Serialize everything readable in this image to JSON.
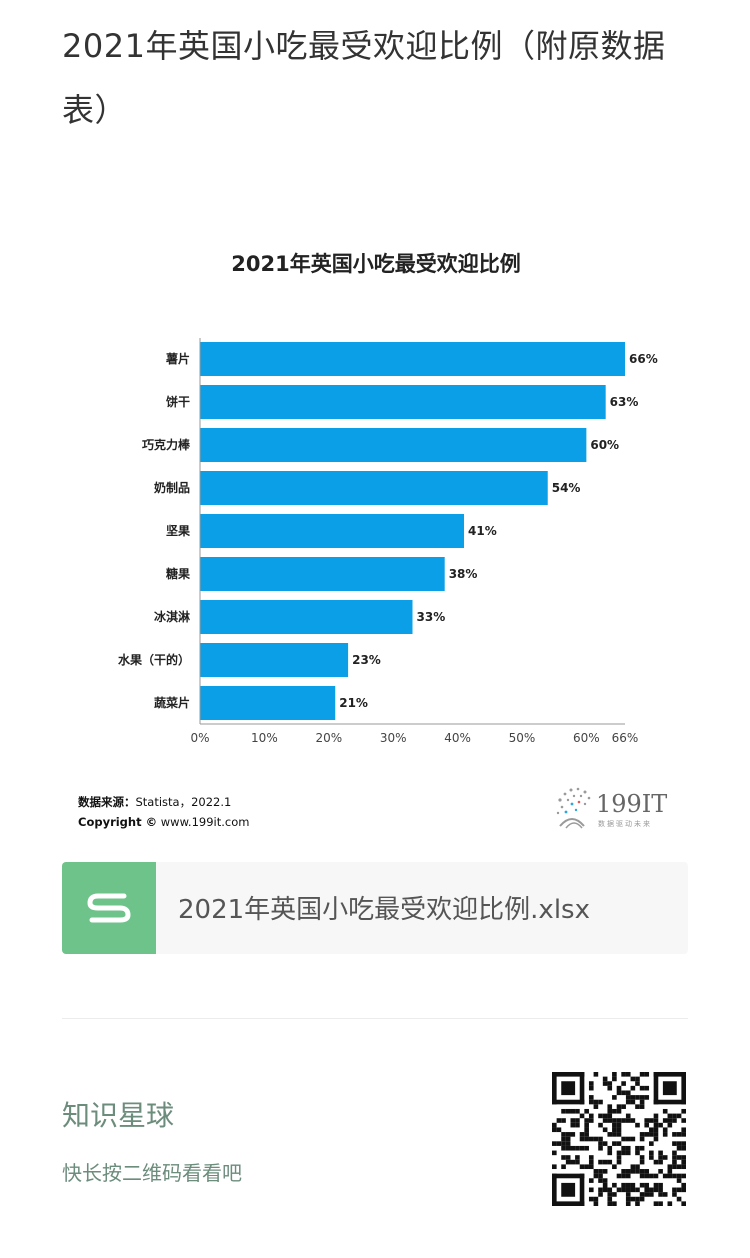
{
  "article": {
    "title": "2021年英国小吃最受欢迎比例（附原数据表）"
  },
  "chart_data": {
    "type": "bar",
    "orientation": "horizontal",
    "title": "2021年英国小吃最受欢迎比例",
    "categories": [
      "薯片",
      "饼干",
      "巧克力棒",
      "奶制品",
      "坚果",
      "糖果",
      "冰淇淋",
      "水果（干的）",
      "蔬菜片"
    ],
    "values": [
      66,
      63,
      60,
      54,
      41,
      38,
      33,
      23,
      21
    ],
    "value_labels": [
      "66%",
      "63%",
      "60%",
      "54%",
      "41%",
      "38%",
      "33%",
      "23%",
      "21%"
    ],
    "x_ticks": [
      "0%",
      "10%",
      "20%",
      "30%",
      "40%",
      "50%",
      "60%",
      "66%"
    ],
    "x_tick_values": [
      0,
      10,
      20,
      30,
      40,
      50,
      60,
      66
    ],
    "xlim": [
      0,
      66
    ],
    "grid": false,
    "bar_color": "#0a9fe6"
  },
  "source": {
    "label": "数据来源：",
    "text": "Statista，2022.1",
    "copyright_label": "Copyright ©",
    "copyright_text": "www.199it.com"
  },
  "brand": {
    "name": "199IT",
    "tagline": "数据驱动未来"
  },
  "file": {
    "name": "2021年英国小吃最受欢迎比例.xlsx",
    "icon": "spreadsheet-s-icon",
    "icon_color": "#6ec38b"
  },
  "footer": {
    "title": "知识星球",
    "subtitle": "快长按二维码看看吧",
    "accent": "#6c8c7c"
  }
}
